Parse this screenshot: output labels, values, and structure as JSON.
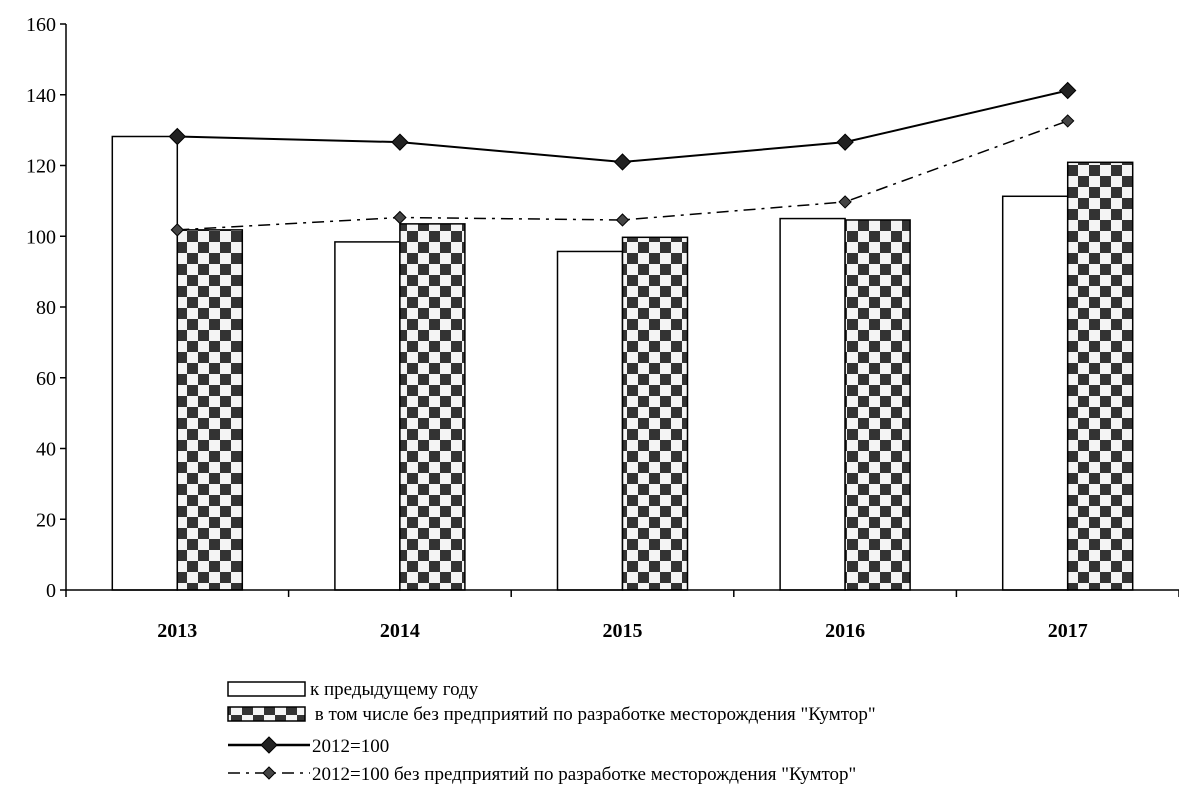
{
  "chart_data": {
    "type": "bar",
    "categories": [
      "2013",
      "2014",
      "2015",
      "2016",
      "2017"
    ],
    "ylim": [
      0,
      160
    ],
    "yticks": [
      0,
      20,
      40,
      60,
      80,
      100,
      120,
      140,
      160
    ],
    "grid": false,
    "legend_position": "bottom",
    "bar_series": [
      {
        "name": "к предыдущему году",
        "values": [
          128.2,
          98.4,
          95.7,
          105.0,
          111.3
        ],
        "style": "plain"
      },
      {
        "name": " в том числе без предприятий по разработке месторождения \"Кумтор\"",
        "values": [
          101.8,
          103.5,
          99.7,
          104.6,
          120.9
        ],
        "style": "checkered"
      }
    ],
    "line_series": [
      {
        "name": "2012=100",
        "values": [
          128.2,
          126.6,
          121.0,
          126.6,
          141.2
        ],
        "style": "solid"
      },
      {
        "name": "2012=100 без предприятий по разработке месторождения \"Кумтор\"",
        "values": [
          101.8,
          105.3,
          104.6,
          109.7,
          132.6
        ],
        "style": "dash-dot"
      }
    ],
    "colors": {
      "axis": "#000000",
      "bar_fill": "#ffffff",
      "checker_dark": "#333333",
      "checker_light": "#f4f4f4",
      "line": "#000000"
    }
  }
}
